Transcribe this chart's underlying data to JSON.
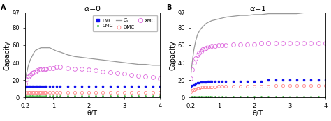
{
  "title_A": "=0",
  "title_B": "=1",
  "panel_A_label": "A",
  "panel_B_label": "B",
  "xlabel": "θ/T",
  "ylabel": "Capacity",
  "xlim": [
    0.2,
    4.0
  ],
  "ylim": [
    0,
    97
  ],
  "yticks": [
    0,
    20,
    40,
    60,
    80,
    97
  ],
  "xticks": [
    0.2,
    1,
    2,
    3,
    4
  ],
  "xticklabels": [
    "0.2",
    "1",
    "2",
    "3",
    "4"
  ],
  "colors": {
    "LMC": "#1111EE",
    "CMC": "#44BB44",
    "Cs": "#999999",
    "QMC": "#FF8888",
    "XMC": "#DD66DD"
  },
  "A": {
    "theta": [
      0.2,
      0.25,
      0.3,
      0.35,
      0.4,
      0.45,
      0.5,
      0.55,
      0.6,
      0.65,
      0.7,
      0.75,
      0.8,
      0.9,
      1.0,
      1.1,
      1.2,
      1.4,
      1.6,
      1.8,
      2.0,
      2.2,
      2.4,
      2.6,
      2.8,
      3.0,
      3.2,
      3.4,
      3.6,
      3.8,
      4.0
    ],
    "LMC": [
      12,
      13,
      13,
      13,
      13,
      13,
      13,
      13,
      13,
      13,
      13,
      13,
      13,
      13,
      13,
      13,
      13,
      13,
      13,
      13,
      13,
      13,
      13,
      13,
      13,
      13,
      13,
      13,
      13,
      13,
      13
    ],
    "CMC": [
      2,
      2,
      2,
      2,
      2,
      2,
      2,
      2,
      2,
      2,
      2,
      2,
      2,
      2,
      2,
      2,
      2,
      2,
      2,
      2,
      2,
      2,
      2,
      2,
      2,
      2,
      2,
      2,
      2,
      2,
      2
    ],
    "Cs": [
      18,
      28,
      37,
      43,
      47,
      51,
      54,
      55,
      56,
      57,
      57,
      57,
      57,
      57,
      55,
      53,
      52,
      49,
      47,
      46,
      45,
      44,
      43,
      42,
      41,
      40,
      39,
      38,
      38,
      37,
      37
    ],
    "QMC": [
      5,
      6,
      6,
      6,
      6,
      6,
      6,
      6,
      6,
      6,
      6,
      6,
      6,
      6,
      6,
      6,
      6,
      6,
      6,
      6,
      6,
      6,
      6,
      6,
      6,
      6,
      6,
      6,
      6,
      6,
      6
    ],
    "XMC": [
      16,
      21,
      24,
      26,
      28,
      29,
      30,
      31,
      32,
      32,
      33,
      33,
      33,
      34,
      34,
      35,
      35,
      34,
      33,
      33,
      32,
      31,
      30,
      29,
      28,
      27,
      26,
      25,
      24,
      23,
      22
    ]
  },
  "B": {
    "theta": [
      0.2,
      0.25,
      0.3,
      0.35,
      0.4,
      0.45,
      0.5,
      0.55,
      0.6,
      0.65,
      0.7,
      0.75,
      0.8,
      0.9,
      1.0,
      1.1,
      1.2,
      1.4,
      1.6,
      1.8,
      2.0,
      2.2,
      2.4,
      2.6,
      2.8,
      3.0,
      3.2,
      3.4,
      3.6,
      3.8,
      4.0
    ],
    "LMC": [
      12,
      14,
      15,
      16,
      17,
      17,
      18,
      18,
      18,
      18,
      19,
      19,
      19,
      19,
      19,
      19,
      19,
      19,
      19,
      19,
      19,
      19,
      20,
      20,
      20,
      20,
      20,
      20,
      20,
      20,
      20
    ],
    "CMC": [
      1,
      1,
      1,
      1,
      1,
      1,
      1,
      1,
      1,
      1,
      1,
      1,
      1,
      1,
      1,
      1,
      1,
      1,
      1,
      1,
      1,
      1,
      1,
      1,
      1,
      1,
      1,
      1,
      1,
      1,
      1
    ],
    "Cs": [
      22,
      40,
      55,
      65,
      72,
      76,
      79,
      81,
      83,
      85,
      86,
      87,
      88,
      89,
      90,
      91,
      92,
      93,
      94,
      94,
      95,
      95,
      96,
      96,
      96,
      96,
      96,
      97,
      97,
      97,
      97
    ],
    "QMC": [
      7,
      8,
      9,
      10,
      11,
      11,
      12,
      12,
      12,
      12,
      12,
      12,
      12,
      12,
      13,
      13,
      13,
      13,
      13,
      13,
      13,
      13,
      13,
      14,
      14,
      14,
      14,
      14,
      14,
      14,
      14
    ],
    "XMC": [
      22,
      32,
      40,
      45,
      49,
      51,
      53,
      55,
      56,
      57,
      58,
      58,
      59,
      59,
      60,
      60,
      60,
      61,
      61,
      61,
      61,
      62,
      62,
      62,
      62,
      62,
      62,
      62,
      62,
      62,
      62
    ]
  }
}
